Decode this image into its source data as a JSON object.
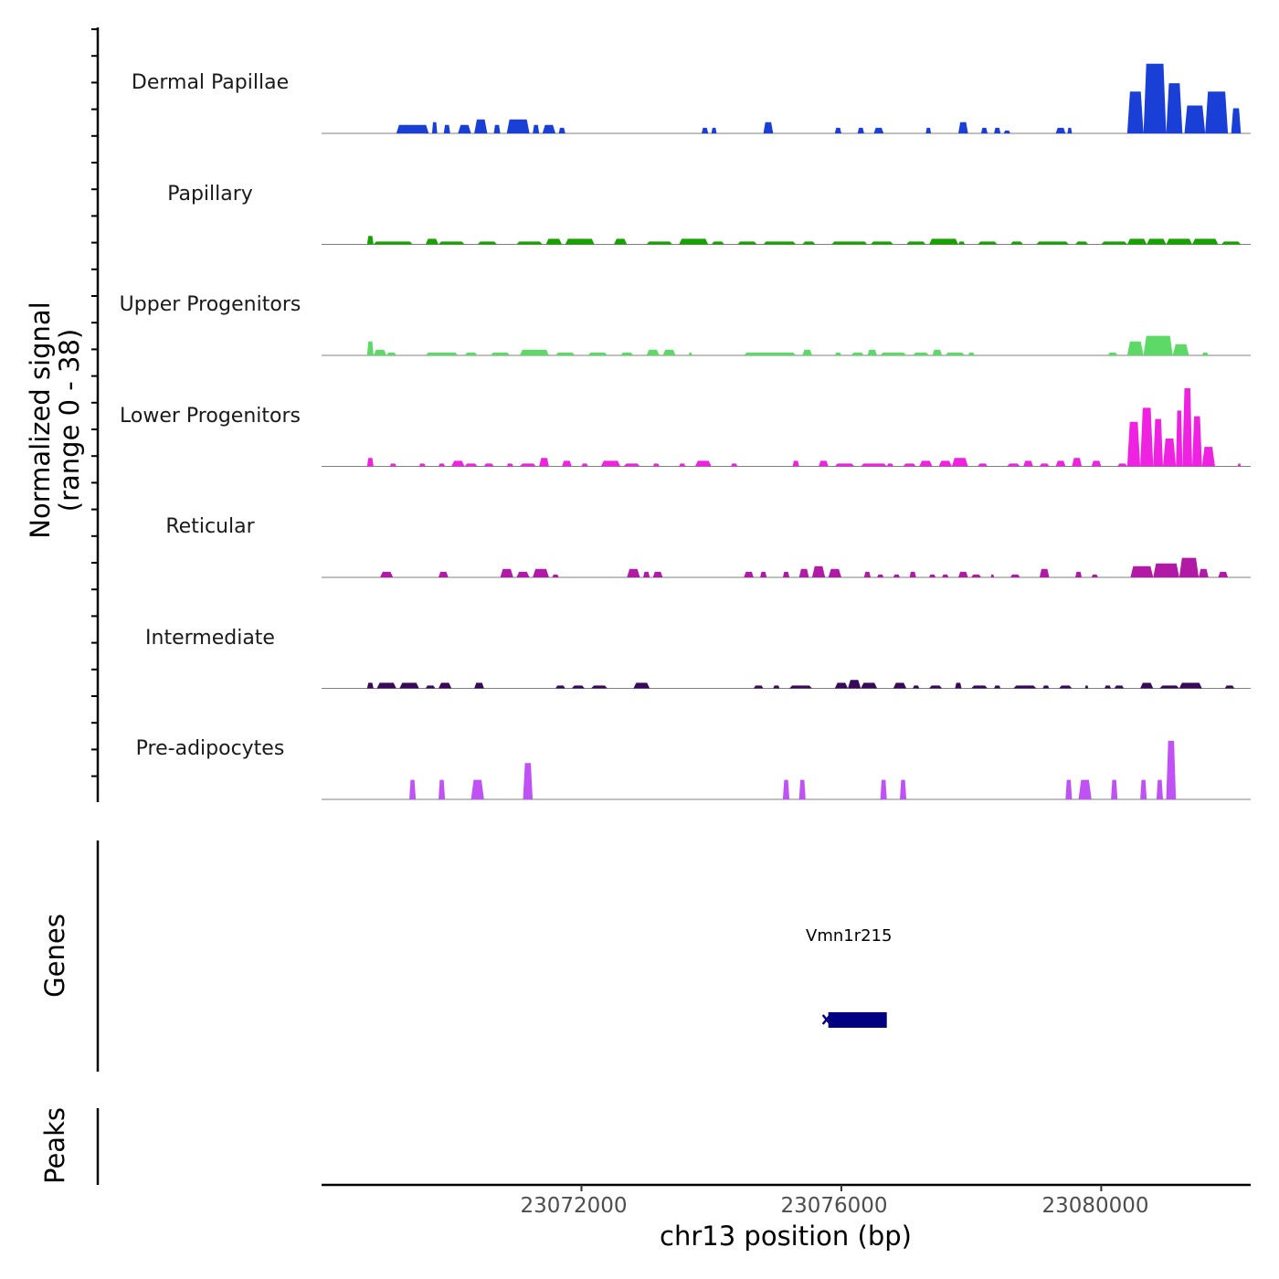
{
  "chart_data": {
    "type": "area",
    "title": "",
    "ylabel_line1": "Normalized signal",
    "ylabel_line2": "(range 0 - 38)",
    "ylim": [
      0,
      38
    ],
    "xlabel": "chr13 position (bp)",
    "xlim": [
      23068000,
      23082300
    ],
    "x_ticks": [
      23072000,
      23076000,
      23080000
    ],
    "x_tick_labels": [
      "23072000",
      "23076000",
      "23080000"
    ],
    "genes_label": "Genes",
    "peaks_label": "Peaks",
    "series": [
      {
        "name": "Dermal Papillae",
        "color": "#1a3fd6",
        "segments": [
          [
            23069150,
            23069650,
            3
          ],
          [
            23069700,
            23069780,
            4
          ],
          [
            23069880,
            23069980,
            3
          ],
          [
            23070100,
            23070300,
            3
          ],
          [
            23070350,
            23070550,
            5
          ],
          [
            23070650,
            23070750,
            3
          ],
          [
            23070850,
            23071200,
            5
          ],
          [
            23071250,
            23071350,
            3
          ],
          [
            23071400,
            23071600,
            3
          ],
          [
            23071650,
            23071750,
            2
          ],
          [
            23073850,
            23073950,
            2
          ],
          [
            23074000,
            23074080,
            2
          ],
          [
            23074800,
            23074950,
            4
          ],
          [
            23075900,
            23076000,
            2
          ],
          [
            23076250,
            23076350,
            2
          ],
          [
            23076500,
            23076650,
            2
          ],
          [
            23077300,
            23077380,
            2
          ],
          [
            23077800,
            23077950,
            4
          ],
          [
            23078150,
            23078250,
            2
          ],
          [
            23078350,
            23078450,
            2
          ],
          [
            23078500,
            23078600,
            1
          ],
          [
            23079300,
            23079450,
            2
          ],
          [
            23079480,
            23079550,
            2
          ],
          [
            23080400,
            23080650,
            15
          ],
          [
            23080650,
            23081000,
            25
          ],
          [
            23081000,
            23081250,
            18
          ],
          [
            23081280,
            23081600,
            10
          ],
          [
            23081600,
            23081950,
            15
          ],
          [
            23082000,
            23082150,
            9
          ]
        ]
      },
      {
        "name": "Papillary",
        "color": "#16a300",
        "segments": [
          [
            23068700,
            23068800,
            3
          ],
          [
            23068800,
            23069400,
            1
          ],
          [
            23069600,
            23069800,
            2
          ],
          [
            23069800,
            23070200,
            1
          ],
          [
            23070400,
            23070700,
            1
          ],
          [
            23071000,
            23071400,
            1
          ],
          [
            23071450,
            23071700,
            2
          ],
          [
            23071750,
            23072200,
            2
          ],
          [
            23072500,
            23072700,
            2
          ],
          [
            23073000,
            23073400,
            1
          ],
          [
            23073500,
            23073950,
            2
          ],
          [
            23074000,
            23074200,
            1
          ],
          [
            23074400,
            23074700,
            1
          ],
          [
            23074800,
            23075300,
            1
          ],
          [
            23075400,
            23075600,
            1
          ],
          [
            23075850,
            23076400,
            1
          ],
          [
            23076450,
            23076800,
            1
          ],
          [
            23077000,
            23077300,
            1
          ],
          [
            23077350,
            23077800,
            2
          ],
          [
            23077800,
            23077900,
            1
          ],
          [
            23078100,
            23078400,
            1
          ],
          [
            23078600,
            23078800,
            1
          ],
          [
            23079000,
            23079500,
            1
          ],
          [
            23079600,
            23079800,
            1
          ],
          [
            23080000,
            23080400,
            1
          ],
          [
            23080400,
            23080700,
            2
          ],
          [
            23080700,
            23081000,
            2
          ],
          [
            23081000,
            23081400,
            2
          ],
          [
            23081400,
            23081800,
            2
          ],
          [
            23081850,
            23082150,
            1
          ]
        ]
      },
      {
        "name": "Upper Progenitors",
        "color": "#5cd966",
        "segments": [
          [
            23068700,
            23068800,
            5
          ],
          [
            23068800,
            23069000,
            2
          ],
          [
            23069000,
            23069150,
            1
          ],
          [
            23069600,
            23070100,
            1
          ],
          [
            23070200,
            23070400,
            1
          ],
          [
            23070600,
            23070900,
            1
          ],
          [
            23071050,
            23071500,
            2
          ],
          [
            23071600,
            23071900,
            1
          ],
          [
            23072100,
            23072400,
            1
          ],
          [
            23072600,
            23072800,
            1
          ],
          [
            23073000,
            23073200,
            2
          ],
          [
            23073250,
            23073450,
            2
          ],
          [
            23073650,
            23073700,
            1
          ],
          [
            23074500,
            23075300,
            1
          ],
          [
            23075400,
            23075550,
            2
          ],
          [
            23075900,
            23076000,
            1
          ],
          [
            23076150,
            23076350,
            1
          ],
          [
            23076400,
            23076550,
            2
          ],
          [
            23076600,
            23077000,
            1
          ],
          [
            23077100,
            23077350,
            1
          ],
          [
            23077400,
            23077550,
            2
          ],
          [
            23077600,
            23077900,
            1
          ],
          [
            23077950,
            23078050,
            1
          ],
          [
            23080100,
            23080250,
            1
          ],
          [
            23080400,
            23080650,
            5
          ],
          [
            23080650,
            23081100,
            7
          ],
          [
            23081100,
            23081350,
            4
          ],
          [
            23081550,
            23081650,
            1
          ]
        ]
      },
      {
        "name": "Lower Progenitors",
        "color": "#ee22e0",
        "segments": [
          [
            23068700,
            23068800,
            3
          ],
          [
            23069050,
            23069150,
            1
          ],
          [
            23069500,
            23069600,
            1
          ],
          [
            23069800,
            23069900,
            1
          ],
          [
            23070000,
            23070200,
            2
          ],
          [
            23070200,
            23070400,
            1
          ],
          [
            23070500,
            23070650,
            1
          ],
          [
            23070850,
            23070950,
            1
          ],
          [
            23071050,
            23071300,
            1
          ],
          [
            23071350,
            23071500,
            3
          ],
          [
            23071700,
            23071850,
            2
          ],
          [
            23072000,
            23072100,
            1
          ],
          [
            23072300,
            23072600,
            2
          ],
          [
            23072650,
            23072900,
            1
          ],
          [
            23073100,
            23073200,
            1
          ],
          [
            23073500,
            23073600,
            1
          ],
          [
            23073750,
            23074000,
            2
          ],
          [
            23074300,
            23074400,
            1
          ],
          [
            23075250,
            23075350,
            2
          ],
          [
            23075650,
            23075800,
            2
          ],
          [
            23075900,
            23076200,
            1
          ],
          [
            23076300,
            23076700,
            1
          ],
          [
            23076700,
            23076800,
            1
          ],
          [
            23076950,
            23077150,
            1
          ],
          [
            23077200,
            23077400,
            2
          ],
          [
            23077500,
            23077700,
            2
          ],
          [
            23077700,
            23077950,
            3
          ],
          [
            23078100,
            23078250,
            1
          ],
          [
            23078550,
            23078750,
            1
          ],
          [
            23078800,
            23078950,
            2
          ],
          [
            23079050,
            23079200,
            1
          ],
          [
            23079300,
            23079450,
            2
          ],
          [
            23079550,
            23079700,
            3
          ],
          [
            23079850,
            23080000,
            2
          ],
          [
            23080250,
            23080400,
            1
          ],
          [
            23080400,
            23080600,
            16
          ],
          [
            23080600,
            23080800,
            21
          ],
          [
            23080800,
            23080950,
            17
          ],
          [
            23080950,
            23081150,
            10
          ],
          [
            23081150,
            23081250,
            20
          ],
          [
            23081250,
            23081400,
            28
          ],
          [
            23081400,
            23081550,
            18
          ],
          [
            23081550,
            23081750,
            7
          ],
          [
            23082100,
            23082150,
            1
          ]
        ]
      },
      {
        "name": "Reticular",
        "color": "#b11aa5",
        "segments": [
          [
            23068900,
            23069100,
            2
          ],
          [
            23069800,
            23069950,
            2
          ],
          [
            23070750,
            23070950,
            3
          ],
          [
            23071000,
            23071200,
            2
          ],
          [
            23071250,
            23071500,
            3
          ],
          [
            23071550,
            23071650,
            1
          ],
          [
            23072700,
            23072900,
            3
          ],
          [
            23072950,
            23073050,
            2
          ],
          [
            23073100,
            23073250,
            2
          ],
          [
            23074500,
            23074650,
            2
          ],
          [
            23074750,
            23074850,
            2
          ],
          [
            23075100,
            23075200,
            2
          ],
          [
            23075350,
            23075500,
            3
          ],
          [
            23075550,
            23075750,
            4
          ],
          [
            23075800,
            23076000,
            3
          ],
          [
            23076350,
            23076450,
            2
          ],
          [
            23076550,
            23076650,
            1
          ],
          [
            23076800,
            23076900,
            1
          ],
          [
            23077050,
            23077150,
            2
          ],
          [
            23077350,
            23077450,
            1
          ],
          [
            23077550,
            23077650,
            1
          ],
          [
            23077800,
            23077950,
            2
          ],
          [
            23078000,
            23078150,
            1
          ],
          [
            23078300,
            23078350,
            1
          ],
          [
            23078600,
            23078750,
            1
          ],
          [
            23079050,
            23079200,
            3
          ],
          [
            23079600,
            23079700,
            2
          ],
          [
            23079850,
            23079950,
            1
          ],
          [
            23080450,
            23080800,
            4
          ],
          [
            23080800,
            23081200,
            5
          ],
          [
            23081200,
            23081500,
            7
          ],
          [
            23081500,
            23081650,
            3
          ],
          [
            23081800,
            23081950,
            2
          ]
        ]
      },
      {
        "name": "Intermediate",
        "color": "#3a0a5a",
        "segments": [
          [
            23068700,
            23068800,
            2
          ],
          [
            23068850,
            23069150,
            2
          ],
          [
            23069200,
            23069500,
            2
          ],
          [
            23069600,
            23069750,
            1
          ],
          [
            23069800,
            23070000,
            2
          ],
          [
            23070350,
            23070500,
            2
          ],
          [
            23071600,
            23071750,
            1
          ],
          [
            23071850,
            23072050,
            1
          ],
          [
            23072150,
            23072400,
            1
          ],
          [
            23072800,
            23073050,
            2
          ],
          [
            23074650,
            23074800,
            1
          ],
          [
            23074950,
            23075050,
            1
          ],
          [
            23075200,
            23075550,
            1
          ],
          [
            23075900,
            23076100,
            2
          ],
          [
            23076100,
            23076300,
            3
          ],
          [
            23076300,
            23076550,
            2
          ],
          [
            23076800,
            23077000,
            2
          ],
          [
            23077100,
            23077200,
            1
          ],
          [
            23077350,
            23077550,
            1
          ],
          [
            23077750,
            23077850,
            2
          ],
          [
            23078000,
            23078250,
            1
          ],
          [
            23078350,
            23078450,
            1
          ],
          [
            23078650,
            23079000,
            1
          ],
          [
            23079100,
            23079200,
            1
          ],
          [
            23079350,
            23079550,
            1
          ],
          [
            23079750,
            23079800,
            1
          ],
          [
            23080050,
            23080150,
            1
          ],
          [
            23080200,
            23080350,
            1
          ],
          [
            23080600,
            23080800,
            2
          ],
          [
            23080900,
            23081200,
            1
          ],
          [
            23081200,
            23081550,
            2
          ],
          [
            23081900,
            23082050,
            1
          ]
        ]
      },
      {
        "name": "Pre-adipocytes",
        "color": "#c052f5",
        "segments": [
          [
            23069350,
            23069450,
            7
          ],
          [
            23069800,
            23069900,
            7
          ],
          [
            23070300,
            23070500,
            7
          ],
          [
            23071100,
            23071250,
            13
          ],
          [
            23075100,
            23075200,
            7
          ],
          [
            23075350,
            23075450,
            7
          ],
          [
            23076600,
            23076700,
            7
          ],
          [
            23076900,
            23077000,
            7
          ],
          [
            23079450,
            23079550,
            7
          ],
          [
            23079650,
            23079850,
            7
          ],
          [
            23080150,
            23080250,
            7
          ],
          [
            23080600,
            23080700,
            7
          ],
          [
            23080850,
            23080950,
            7
          ],
          [
            23081000,
            23081150,
            21
          ]
        ]
      }
    ],
    "genes": [
      {
        "name": "Vmn1r215",
        "start": 23075800,
        "end": 23076700,
        "strand": "-",
        "color": "#000080"
      }
    ]
  }
}
